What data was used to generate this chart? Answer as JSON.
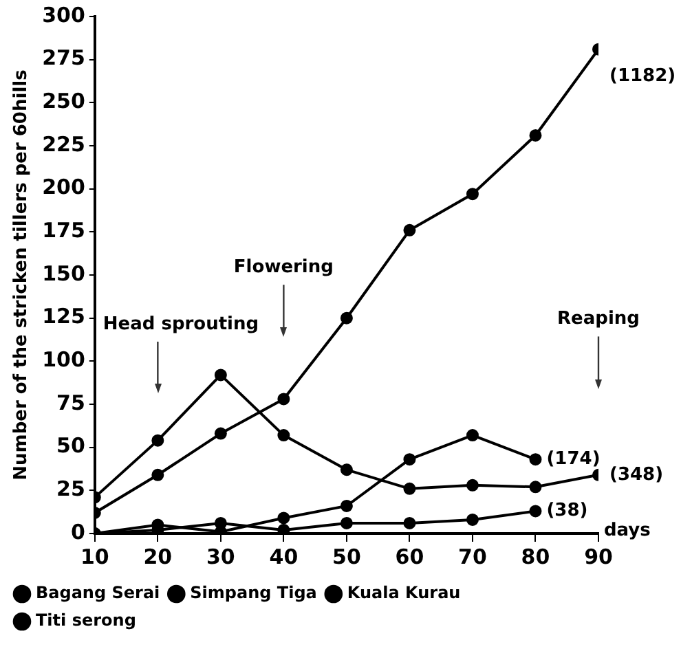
{
  "chart_data": {
    "type": "line",
    "ylabel": "Number of the stricken tillers per 60hills",
    "xlabel": "days",
    "x": [
      10,
      20,
      30,
      40,
      50,
      60,
      70,
      80,
      90
    ],
    "xlim": [
      10,
      90
    ],
    "xticks": [
      10,
      20,
      30,
      40,
      50,
      60,
      70,
      80,
      90
    ],
    "ylim": [
      0,
      300
    ],
    "yticks": [
      0,
      25,
      50,
      75,
      100,
      125,
      150,
      175,
      200,
      225,
      250,
      275,
      300
    ],
    "grid": false,
    "legend": "bottom left",
    "marker": "circle",
    "line_style": "solid",
    "series": [
      {
        "name": "Bagang Serai",
        "color": "#000000",
        "values": [
          12,
          34,
          58,
          78,
          125,
          176,
          197,
          231,
          281
        ]
      },
      {
        "name": "Simpang Tiga",
        "color": "#000000",
        "values": [
          21,
          54,
          92,
          57,
          37,
          26,
          28,
          27,
          34
        ]
      },
      {
        "name": "Kuala Kurau",
        "color": "#000000",
        "values": [
          0,
          5,
          1,
          9,
          16,
          43,
          57,
          43,
          null
        ]
      },
      {
        "name": "Titi serong",
        "color": "#000000",
        "values": [
          0,
          2,
          6,
          2,
          6,
          6,
          8,
          13,
          null
        ]
      }
    ],
    "ref_lines": [
      {
        "axis": "x",
        "value": 20,
        "label": "Head sprouting"
      },
      {
        "axis": "x",
        "value": 40,
        "label": "Flowering"
      },
      {
        "axis": "x",
        "value": 90,
        "label": "Reaping"
      }
    ],
    "annotations": [
      "(1182)",
      "(348)",
      "(174)",
      "(38)"
    ]
  }
}
